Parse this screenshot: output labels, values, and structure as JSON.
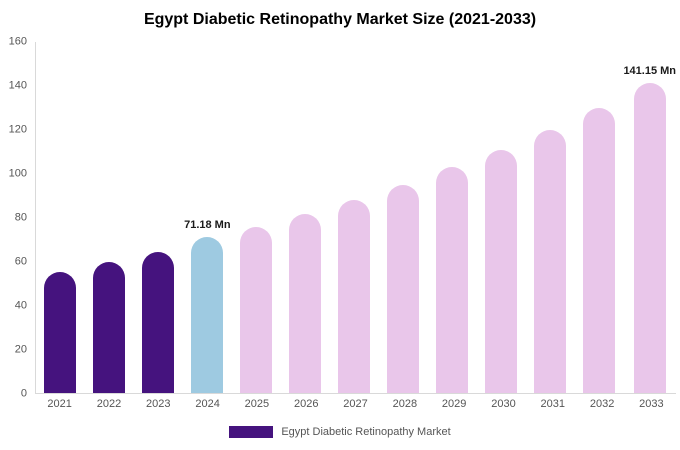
{
  "title": "Egypt Diabetic Retinopathy Market Size (2021-2033)",
  "legend": {
    "label": "Egypt Diabetic Retinopathy Market",
    "color": "#45137e"
  },
  "chart_data": {
    "type": "bar",
    "title": "Egypt Diabetic Retinopathy Market Size (2021-2033)",
    "categories": [
      "2021",
      "2022",
      "2023",
      "2024",
      "2025",
      "2026",
      "2027",
      "2028",
      "2029",
      "2030",
      "2031",
      "2032",
      "2033"
    ],
    "values": [
      55,
      59.5,
      64.5,
      71.18,
      75.5,
      81.5,
      88,
      95,
      103,
      111,
      120,
      130,
      141.15
    ],
    "unit": "Mn",
    "bar_colors": [
      "#45137e",
      "#45137e",
      "#45137e",
      "#9ecae1",
      "#e9c6ea",
      "#e9c6ea",
      "#e9c6ea",
      "#e9c6ea",
      "#e9c6ea",
      "#e9c6ea",
      "#e9c6ea",
      "#e9c6ea",
      "#e9c6ea"
    ],
    "annotations": [
      {
        "index": 3,
        "label": "71.18 Mn"
      },
      {
        "index": 12,
        "label": "141.15 Mn"
      }
    ],
    "ylim": [
      0,
      160
    ],
    "ytick_step": 20,
    "xlabel": "",
    "ylabel": "",
    "grid": false,
    "legend_position": "bottom"
  }
}
